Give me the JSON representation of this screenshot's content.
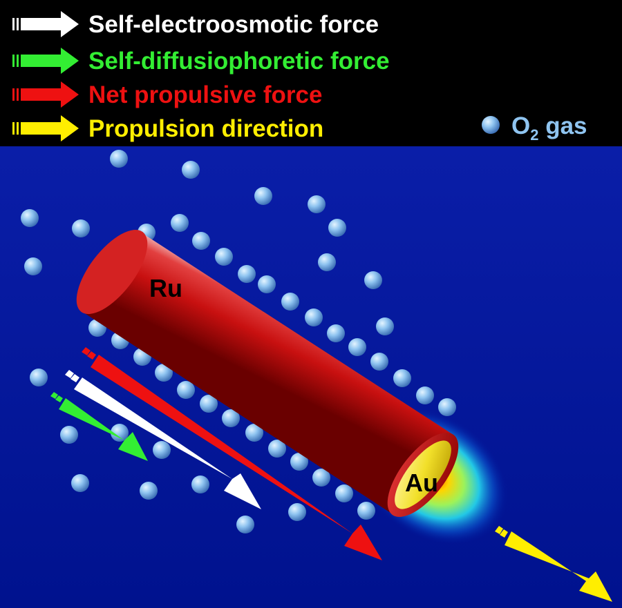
{
  "legend": {
    "items": [
      {
        "label": "Self-electroosmotic force",
        "color": "#ffffff"
      },
      {
        "label": "Self-diffusiophoretic force",
        "color": "#33ee33"
      },
      {
        "label": "Net propulsive force",
        "color": "#ee1111"
      },
      {
        "label": "Propulsion direction",
        "color": "#ffee00"
      }
    ],
    "gas_label": {
      "main": "O",
      "subscript": "2",
      "suffix": " gas",
      "color": "#8fc4f0"
    }
  },
  "labels": {
    "ru": "Ru",
    "au": "Au"
  },
  "colors": {
    "background": "#00149a",
    "legend_bar": "#000000",
    "rod": "#d81818",
    "bubble": "#8fc4f0"
  },
  "icons": [
    "o2-bubble-icon",
    "arrow-icon"
  ]
}
